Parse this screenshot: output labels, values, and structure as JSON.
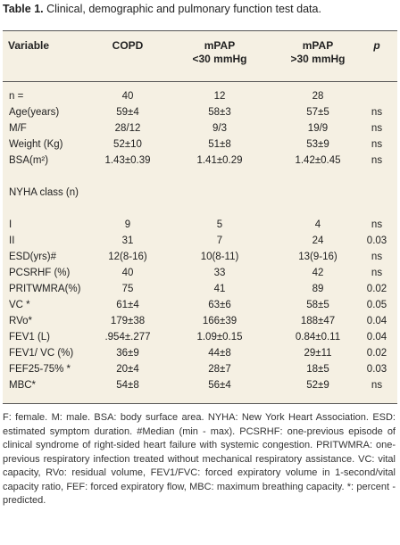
{
  "title": {
    "label": "Table 1.",
    "text": "Clinical, demographic and pulmonary function test data."
  },
  "headers": {
    "variable": "Variable",
    "copd": "COPD",
    "mpap_low_1": "mPAP",
    "mpap_low_2": "<30 mmHg",
    "mpap_high_1": "mPAP",
    "mpap_high_2": ">30 mmHg",
    "p": "p"
  },
  "rows": [
    {
      "variable": "n =",
      "copd": "40",
      "low": "12",
      "high": "28",
      "p": ""
    },
    {
      "variable": "Age(years)",
      "copd": "59±4",
      "low": "58±3",
      "high": "57±5",
      "p": "ns"
    },
    {
      "variable": "M/F",
      "copd": "28/12",
      "low": "9/3",
      "high": "19/9",
      "p": "ns"
    },
    {
      "variable": "Weight (Kg)",
      "copd": "52±10",
      "low": "51±8",
      "high": "53±9",
      "p": "ns"
    },
    {
      "variable": "BSA(m²)",
      "copd": "1.43±0.39",
      "low": "1.41±0.29",
      "high": "1.42±0.45",
      "p": "ns"
    },
    {
      "variable": "",
      "copd": "",
      "low": "",
      "high": "",
      "p": ""
    },
    {
      "variable": "NYHA class (n)",
      "copd": "",
      "low": "",
      "high": "",
      "p": ""
    },
    {
      "variable": "",
      "copd": "",
      "low": "",
      "high": "",
      "p": ""
    },
    {
      "variable": "I",
      "copd": "9",
      "low": "5",
      "high": "4",
      "p": "ns"
    },
    {
      "variable": "II",
      "copd": "31",
      "low": "7",
      "high": "24",
      "p": "0.03"
    },
    {
      "variable": "ESD(yrs)#",
      "copd": "12(8-16)",
      "low": "10(8-11)",
      "high": "13(9-16)",
      "p": "ns"
    },
    {
      "variable": "PCSRHF (%)",
      "copd": "40",
      "low": "33",
      "high": "42",
      "p": "ns"
    },
    {
      "variable": "PRITWMRA(%)",
      "copd": "75",
      "low": "41",
      "high": "89",
      "p": "0.02"
    },
    {
      "variable": "VC *",
      "copd": "61±4",
      "low": "63±6",
      "high": "58±5",
      "p": "0.05"
    },
    {
      "variable": "RVo*",
      "copd": "179±38",
      "low": "166±39",
      "high": "188±47",
      "p": "0.04"
    },
    {
      "variable": "FEV1 (L)",
      "copd": ".954±.277",
      "low": "1.09±0.15",
      "high": "0.84±0.11",
      "p": "0.04"
    },
    {
      "variable": "FEV1/ VC (%)",
      "copd": "36±9",
      "low": "44±8",
      "high": "29±11",
      "p": "0.02"
    },
    {
      "variable": "FEF25-75% *",
      "copd": "20±4",
      "low": "28±7",
      "high": "18±5",
      "p": "0.03"
    },
    {
      "variable": "MBC*",
      "copd": "54±8",
      "low": "56±4",
      "high": "52±9",
      "p": "ns"
    }
  ],
  "footnote": "F: female. M: male. BSA: body surface area. NYHA: New York Heart Association. ESD: estimated symptom duration. #Median (min - max). PCSRHF: one-previous episode of clinical syndrome of right-sided heart failure with systemic congestion. PRITWMRA: one-previous respiratory infection treated without mechanical respiratory assistance. VC: vital capacity, RVo: residual volume, FEV1/FVC: forced expiratory volume in 1-second/vital capacity ratio, FEF: forced expiratory flow, MBC: maximum breathing capacity. *: percent - predicted.",
  "colors": {
    "table_background": "#f5f0e3",
    "rule": "#555555"
  }
}
